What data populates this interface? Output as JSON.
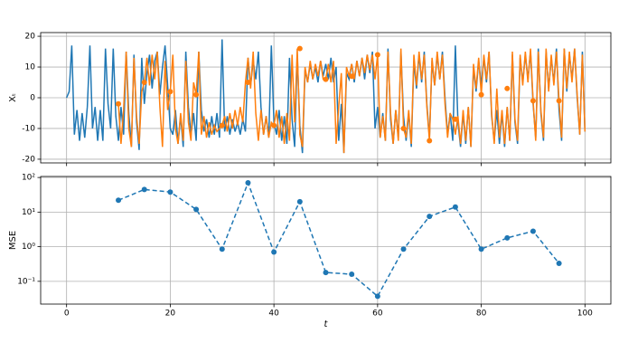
{
  "chart_data": [
    {
      "type": "line",
      "ylabel": "Xₜ",
      "grid": true,
      "show_xtick_labels": false,
      "xlim": [
        -5,
        105
      ],
      "xticks": [
        0,
        20,
        40,
        60,
        80,
        100
      ],
      "ylim": [
        -21.2,
        21.2
      ],
      "yticks": [
        -20,
        -10,
        0,
        10,
        20
      ],
      "x": [
        0,
        0.5,
        1,
        1.5,
        2,
        2.5,
        3,
        3.5,
        4,
        4.5,
        5,
        5.5,
        6,
        6.5,
        7,
        7.5,
        8,
        8.5,
        9,
        9.5,
        10,
        10.5,
        11,
        11.5,
        12,
        12.5,
        13,
        13.5,
        14,
        14.5,
        15,
        15.5,
        16,
        16.5,
        17,
        17.5,
        18,
        18.5,
        19,
        19.5,
        20,
        20.5,
        21,
        21.5,
        22,
        22.5,
        23,
        23.5,
        24,
        24.5,
        25,
        25.5,
        26,
        26.5,
        27,
        27.5,
        28,
        28.5,
        29,
        29.5,
        30,
        30.5,
        31,
        31.5,
        32,
        32.5,
        33,
        33.5,
        34,
        34.5,
        35,
        35.5,
        36,
        36.5,
        37,
        37.5,
        38,
        38.5,
        39,
        39.5,
        40,
        40.5,
        41,
        41.5,
        42,
        42.5,
        43,
        43.5,
        44,
        44.5,
        45,
        45.5,
        46,
        46.5,
        47,
        47.5,
        48,
        48.5,
        49,
        49.5,
        50,
        50.5,
        51,
        51.5,
        52,
        52.5,
        53,
        53.5,
        54,
        54.5,
        55,
        55.5,
        56,
        56.5,
        57,
        57.5,
        58,
        58.5,
        59,
        59.5,
        60,
        60.5,
        61,
        61.5,
        62,
        62.5,
        63,
        63.5,
        64,
        64.5,
        65,
        65.5,
        66,
        66.5,
        67,
        67.5,
        68,
        68.5,
        69,
        69.5,
        70,
        70.5,
        71,
        71.5,
        72,
        72.5,
        73,
        73.5,
        74,
        74.5,
        75,
        75.5,
        76,
        76.5,
        77,
        77.5,
        78,
        78.5,
        79,
        79.5,
        80,
        80.5,
        81,
        81.5,
        82,
        82.5,
        83,
        83.5,
        84,
        84.5,
        85,
        85.5,
        86,
        86.5,
        87,
        87.5,
        88,
        88.5,
        89,
        89.5,
        90,
        90.5,
        91,
        91.5,
        92,
        92.5,
        93,
        93.5,
        94,
        94.5,
        95,
        95.5,
        96,
        96.5,
        97,
        97.5,
        98,
        98.5,
        99,
        99.5,
        100
      ],
      "series": [
        {
          "color": "#1f77b4",
          "values": [
            0,
            2,
            17,
            -12,
            -4,
            -14,
            -5,
            -13,
            -3,
            17,
            -10,
            -3,
            -14,
            -4,
            -14,
            16,
            -2,
            -10,
            16,
            -6,
            -14,
            -3,
            -12,
            15,
            -5,
            -16,
            14,
            -8,
            -17,
            13,
            -2,
            8,
            14,
            3,
            12,
            15,
            1,
            10,
            17,
            4,
            -10,
            -12,
            -4,
            -15,
            -6,
            -16,
            15,
            -3,
            -12,
            -5,
            -14,
            15,
            -4,
            -11,
            -7,
            -13,
            -6,
            -12,
            -5,
            -13,
            19,
            -11,
            -6,
            -12,
            -7,
            -11,
            -8,
            -12,
            -7,
            -11,
            13,
            4,
            12,
            6,
            15,
            -3,
            -12,
            -6,
            -13,
            17,
            -8,
            -12,
            -4,
            -14,
            -6,
            -15,
            13,
            -7,
            -16,
            14,
            -9,
            -18,
            9,
            5,
            11,
            6,
            10,
            5,
            12,
            7,
            11,
            6,
            13,
            5,
            10,
            -14,
            -2,
            -18,
            8,
            6,
            11,
            5,
            12,
            7,
            13,
            6,
            14,
            8,
            15,
            -10,
            -3,
            -13,
            -5,
            -14,
            16,
            -7,
            -15,
            -4,
            -13,
            15,
            -6,
            -14,
            -5,
            -16,
            12,
            3,
            14,
            5,
            15,
            -2,
            -13,
            12,
            4,
            14,
            6,
            15,
            0,
            -12,
            -5,
            -14,
            17,
            -8,
            -16,
            -5,
            -15,
            -3,
            -16,
            10,
            2,
            12,
            4,
            13,
            5,
            15,
            -6,
            -14,
            -4,
            -15,
            -5,
            -16,
            -3,
            -14,
            14,
            -8,
            -15,
            13,
            5,
            14,
            6,
            15,
            -2,
            -13,
            16,
            -5,
            -14,
            15,
            3,
            13,
            5,
            16,
            -4,
            -14,
            16,
            2,
            14,
            6,
            16,
            0,
            -12,
            15,
            -11
          ]
        },
        {
          "color": "#ff7f0e",
          "values": [
            null,
            null,
            null,
            null,
            null,
            null,
            null,
            null,
            null,
            null,
            null,
            null,
            null,
            null,
            null,
            null,
            null,
            null,
            null,
            null,
            -2,
            -15,
            -4,
            15,
            -10,
            -16,
            13,
            -6,
            -15,
            2,
            5,
            13,
            4,
            14,
            6,
            15,
            -3,
            -16,
            12,
            -4,
            2,
            14,
            -10,
            -15,
            -5,
            -14,
            12,
            -8,
            -14,
            5,
            1,
            15,
            -12,
            -6,
            -13,
            -8,
            -12,
            -9,
            -11,
            -10,
            -9,
            -6,
            -11,
            -5,
            -10,
            -4,
            -9,
            -3,
            -8,
            5,
            13,
            3,
            15,
            -5,
            -14,
            -4,
            -12,
            -6,
            -13,
            -8,
            -9,
            -4,
            -13,
            -6,
            -15,
            -5,
            -14,
            14,
            -8,
            16,
            -12,
            -16,
            10,
            5,
            12,
            6,
            11,
            7,
            12,
            6,
            6,
            11,
            5,
            12,
            -15,
            -3,
            8,
            -18,
            10,
            7,
            11,
            6,
            12,
            7,
            13,
            8,
            14,
            9,
            14,
            6,
            14,
            -13,
            -6,
            -14,
            15,
            -5,
            -15,
            -4,
            -14,
            16,
            -10,
            -13,
            -4,
            -15,
            14,
            4,
            15,
            6,
            14,
            -3,
            -14,
            13,
            4,
            15,
            6,
            14,
            -2,
            -13,
            -5,
            -7,
            -12,
            -6,
            -15,
            -4,
            -14,
            -3,
            -16,
            11,
            3,
            13,
            1,
            14,
            6,
            15,
            -5,
            -15,
            3,
            -13,
            -4,
            -15,
            -3,
            -14,
            15,
            -7,
            -14,
            14,
            4,
            15,
            5,
            16,
            -1,
            -14,
            15,
            -4,
            -13,
            16,
            2,
            14,
            4,
            15,
            -1,
            -13,
            16,
            3,
            15,
            5,
            16,
            1,
            -12,
            14,
            -11
          ]
        },
        {
          "color": "#ff7f0e",
          "marker": true,
          "line": false,
          "x": [
            10,
            15,
            20,
            25,
            30,
            35,
            40,
            45,
            50,
            55,
            60,
            65,
            70,
            75,
            80,
            85,
            90,
            95
          ],
          "values": [
            -2,
            5,
            2,
            1,
            -9,
            5,
            -9,
            16,
            6,
            7,
            14,
            -10,
            -14,
            -7,
            1,
            3,
            -1,
            -1
          ]
        }
      ]
    },
    {
      "type": "line",
      "ylabel": "MSE",
      "xlabel": "t",
      "grid": true,
      "log_y": true,
      "show_xtick_labels": true,
      "xlim": [
        -5,
        105
      ],
      "xticks": [
        0,
        20,
        40,
        60,
        80,
        100
      ],
      "ylim": [
        0.022,
        107
      ],
      "yticks": [
        {
          "value": 0.1,
          "label": "10⁻¹"
        },
        {
          "value": 1,
          "label": "10⁰"
        },
        {
          "value": 10,
          "label": "10¹"
        },
        {
          "value": 100,
          "label": "10²"
        }
      ],
      "x": [
        10,
        15,
        20,
        25,
        30,
        35,
        40,
        45,
        50,
        55,
        60,
        65,
        70,
        75,
        80,
        85,
        90,
        95
      ],
      "series": [
        {
          "color": "#1f77b4",
          "marker": true,
          "line": true,
          "dashed": true,
          "values": [
            22,
            45,
            38,
            12,
            0.85,
            70,
            0.7,
            20,
            0.18,
            0.16,
            0.037,
            0.85,
            7.5,
            14,
            0.85,
            1.8,
            2.8,
            0.33
          ]
        }
      ]
    }
  ]
}
